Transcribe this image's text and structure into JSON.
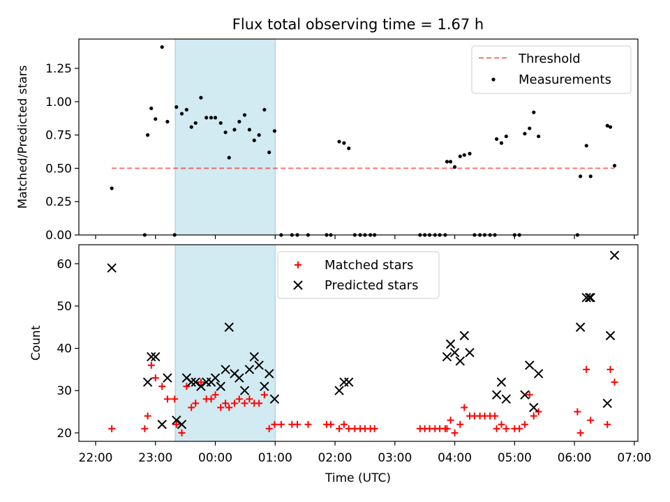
{
  "chart_data": [
    {
      "type": "scatter",
      "title": "Flux total observing time = 1.67 h",
      "ylabel": "Matched/Predicted stars",
      "xlabel": "",
      "x_unit": "hours (UTC) from 22:00",
      "xlim": [
        -0.28,
        9.06
      ],
      "ylim": [
        0.0,
        1.47
      ],
      "yticks": [
        "0.00",
        "0.25",
        "0.50",
        "0.75",
        "1.00",
        "1.25"
      ],
      "shaded_region": [
        1.33,
        3.0
      ],
      "shade_color": "#add8e6",
      "legend": {
        "position": "top-right",
        "entries": [
          "Threshold",
          "Measurements"
        ]
      },
      "threshold": {
        "name": "Threshold",
        "y": 0.5,
        "x": [
          0.27,
          8.67
        ],
        "color": "#ff0000",
        "style": "dashed"
      },
      "series": [
        {
          "name": "Measurements",
          "color": "#000000",
          "marker": "dot",
          "points": [
            [
              0.27,
              0.35
            ],
            [
              0.82,
              0.0
            ],
            [
              0.87,
              0.75
            ],
            [
              0.93,
              0.95
            ],
            [
              1.0,
              0.87
            ],
            [
              1.11,
              1.41
            ],
            [
              1.2,
              0.85
            ],
            [
              1.32,
              0.0
            ],
            [
              1.35,
              0.96
            ],
            [
              1.44,
              0.91
            ],
            [
              1.52,
              0.94
            ],
            [
              1.6,
              0.81
            ],
            [
              1.67,
              0.84
            ],
            [
              1.76,
              1.03
            ],
            [
              1.85,
              0.88
            ],
            [
              1.93,
              0.88
            ],
            [
              2.0,
              0.88
            ],
            [
              2.09,
              0.84
            ],
            [
              2.17,
              0.77
            ],
            [
              2.23,
              0.58
            ],
            [
              2.32,
              0.79
            ],
            [
              2.4,
              0.85
            ],
            [
              2.49,
              0.9
            ],
            [
              2.57,
              0.79
            ],
            [
              2.65,
              0.71
            ],
            [
              2.73,
              0.75
            ],
            [
              2.82,
              0.94
            ],
            [
              2.9,
              0.62
            ],
            [
              2.99,
              0.78
            ],
            [
              3.1,
              0.0
            ],
            [
              3.28,
              0.0
            ],
            [
              3.37,
              0.0
            ],
            [
              3.55,
              0.0
            ],
            [
              3.86,
              0.0
            ],
            [
              3.93,
              0.0
            ],
            [
              4.07,
              0.7
            ],
            [
              4.15,
              0.69
            ],
            [
              4.23,
              0.65
            ],
            [
              4.33,
              0.0
            ],
            [
              4.42,
              0.0
            ],
            [
              4.5,
              0.0
            ],
            [
              4.59,
              0.0
            ],
            [
              4.66,
              0.0
            ],
            [
              5.42,
              0.0
            ],
            [
              5.5,
              0.0
            ],
            [
              5.58,
              0.0
            ],
            [
              5.67,
              0.0
            ],
            [
              5.75,
              0.0
            ],
            [
              5.84,
              0.0
            ],
            [
              5.87,
              0.55
            ],
            [
              5.93,
              0.55
            ],
            [
              6.0,
              0.51
            ],
            [
              6.09,
              0.59
            ],
            [
              6.16,
              0.6
            ],
            [
              6.25,
              0.61
            ],
            [
              6.33,
              0.0
            ],
            [
              6.42,
              0.0
            ],
            [
              6.5,
              0.0
            ],
            [
              6.59,
              0.0
            ],
            [
              6.67,
              0.0
            ],
            [
              6.7,
              0.72
            ],
            [
              6.78,
              0.69
            ],
            [
              6.86,
              0.74
            ],
            [
              7.0,
              0.0
            ],
            [
              7.08,
              0.0
            ],
            [
              7.17,
              0.76
            ],
            [
              7.25,
              0.8
            ],
            [
              7.32,
              0.92
            ],
            [
              7.4,
              0.74
            ],
            [
              8.05,
              0.0
            ],
            [
              8.1,
              0.44
            ],
            [
              8.2,
              0.67
            ],
            [
              8.27,
              0.44
            ],
            [
              8.55,
              0.82
            ],
            [
              8.6,
              0.81
            ],
            [
              8.67,
              0.52
            ]
          ]
        }
      ]
    },
    {
      "type": "scatter",
      "title": "",
      "ylabel": "Count",
      "xlabel": "Time (UTC)",
      "x_unit": "hours (UTC) from 22:00",
      "xlim": [
        -0.28,
        9.06
      ],
      "ylim": [
        18,
        64.5
      ],
      "yticks": [
        "20",
        "30",
        "40",
        "50",
        "60"
      ],
      "xticks": [
        {
          "v": 0,
          "label": "22:00"
        },
        {
          "v": 1,
          "label": "23:00"
        },
        {
          "v": 2,
          "label": "00:00"
        },
        {
          "v": 3,
          "label": "01:00"
        },
        {
          "v": 4,
          "label": "02:00"
        },
        {
          "v": 5,
          "label": "03:00"
        },
        {
          "v": 6,
          "label": "04:00"
        },
        {
          "v": 7,
          "label": "05:00"
        },
        {
          "v": 8,
          "label": "06:00"
        },
        {
          "v": 9,
          "label": "07:00"
        }
      ],
      "shaded_region": [
        1.33,
        3.0
      ],
      "shade_color": "#add8e6",
      "legend": {
        "position": "top-center",
        "entries": [
          "Matched stars",
          "Predicted stars"
        ]
      },
      "series": [
        {
          "name": "Matched stars",
          "color": "#ff0000",
          "marker": "plus",
          "points": [
            [
              0.27,
              21
            ],
            [
              0.82,
              21
            ],
            [
              0.87,
              24
            ],
            [
              0.93,
              36
            ],
            [
              1.0,
              33
            ],
            [
              1.11,
              31
            ],
            [
              1.2,
              28
            ],
            [
              1.32,
              28
            ],
            [
              1.35,
              22
            ],
            [
              1.44,
              20
            ],
            [
              1.52,
              31
            ],
            [
              1.6,
              26
            ],
            [
              1.67,
              27
            ],
            [
              1.76,
              32
            ],
            [
              1.85,
              28
            ],
            [
              1.93,
              28
            ],
            [
              2.0,
              29
            ],
            [
              2.09,
              26
            ],
            [
              2.17,
              27
            ],
            [
              2.23,
              26
            ],
            [
              2.32,
              27
            ],
            [
              2.4,
              28
            ],
            [
              2.49,
              27
            ],
            [
              2.57,
              28
            ],
            [
              2.65,
              27
            ],
            [
              2.73,
              27
            ],
            [
              2.82,
              29
            ],
            [
              2.9,
              21
            ],
            [
              2.99,
              22
            ],
            [
              3.1,
              22
            ],
            [
              3.28,
              22
            ],
            [
              3.37,
              22
            ],
            [
              3.55,
              22
            ],
            [
              3.86,
              22
            ],
            [
              3.93,
              22
            ],
            [
              4.07,
              21
            ],
            [
              4.15,
              22
            ],
            [
              4.23,
              21
            ],
            [
              4.33,
              21
            ],
            [
              4.42,
              21
            ],
            [
              4.5,
              21
            ],
            [
              4.59,
              21
            ],
            [
              4.66,
              21
            ],
            [
              5.42,
              21
            ],
            [
              5.5,
              21
            ],
            [
              5.58,
              21
            ],
            [
              5.67,
              21
            ],
            [
              5.75,
              21
            ],
            [
              5.84,
              21
            ],
            [
              5.87,
              21
            ],
            [
              5.93,
              23
            ],
            [
              6.0,
              20
            ],
            [
              6.09,
              22
            ],
            [
              6.16,
              26
            ],
            [
              6.25,
              24
            ],
            [
              6.33,
              24
            ],
            [
              6.42,
              24
            ],
            [
              6.5,
              24
            ],
            [
              6.59,
              24
            ],
            [
              6.67,
              24
            ],
            [
              6.7,
              21
            ],
            [
              6.78,
              22
            ],
            [
              6.86,
              21
            ],
            [
              7.0,
              21
            ],
            [
              7.08,
              21
            ],
            [
              7.17,
              22
            ],
            [
              7.25,
              29
            ],
            [
              7.32,
              24
            ],
            [
              7.4,
              25
            ],
            [
              8.05,
              25
            ],
            [
              8.1,
              20
            ],
            [
              8.2,
              35
            ],
            [
              8.27,
              23
            ],
            [
              8.55,
              22
            ],
            [
              8.6,
              35
            ],
            [
              8.67,
              32
            ]
          ]
        },
        {
          "name": "Predicted stars",
          "color": "#000000",
          "marker": "x",
          "points": [
            [
              0.27,
              59
            ],
            [
              0.87,
              32
            ],
            [
              0.93,
              38
            ],
            [
              1.0,
              38
            ],
            [
              1.11,
              22
            ],
            [
              1.2,
              33
            ],
            [
              1.35,
              23
            ],
            [
              1.44,
              22
            ],
            [
              1.52,
              33
            ],
            [
              1.6,
              32
            ],
            [
              1.67,
              32
            ],
            [
              1.76,
              31
            ],
            [
              1.85,
              32
            ],
            [
              1.93,
              32
            ],
            [
              2.0,
              33
            ],
            [
              2.09,
              31
            ],
            [
              2.17,
              35
            ],
            [
              2.23,
              45
            ],
            [
              2.32,
              34
            ],
            [
              2.4,
              33
            ],
            [
              2.49,
              30
            ],
            [
              2.57,
              35
            ],
            [
              2.65,
              38
            ],
            [
              2.73,
              36
            ],
            [
              2.82,
              31
            ],
            [
              2.9,
              34
            ],
            [
              2.99,
              28
            ],
            [
              4.07,
              30
            ],
            [
              4.15,
              32
            ],
            [
              4.23,
              32
            ],
            [
              5.87,
              38
            ],
            [
              5.93,
              41
            ],
            [
              6.0,
              39
            ],
            [
              6.09,
              37
            ],
            [
              6.16,
              43
            ],
            [
              6.25,
              39
            ],
            [
              6.7,
              29
            ],
            [
              6.78,
              32
            ],
            [
              6.86,
              28
            ],
            [
              7.17,
              29
            ],
            [
              7.25,
              36
            ],
            [
              7.32,
              26
            ],
            [
              7.4,
              34
            ],
            [
              8.1,
              45
            ],
            [
              8.2,
              52
            ],
            [
              8.27,
              52
            ],
            [
              8.55,
              27
            ],
            [
              8.6,
              43
            ],
            [
              8.67,
              62
            ],
            [
              8.25,
              52
            ]
          ]
        }
      ]
    }
  ]
}
